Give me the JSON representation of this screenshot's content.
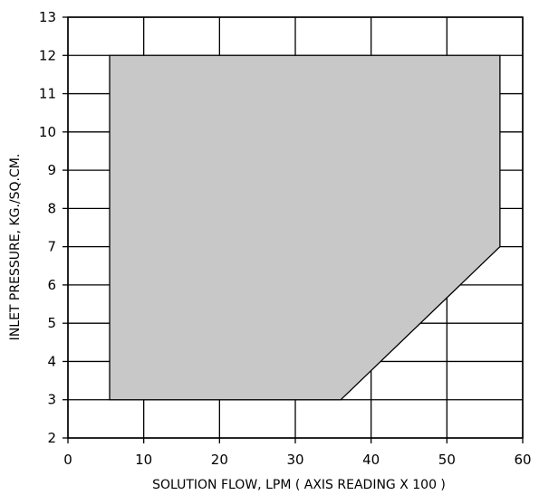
{
  "chart_data": {
    "type": "area",
    "title": "",
    "xlabel": "SOLUTION FLOW, LPM ( AXIS READING X 100 )",
    "ylabel": "INLET PRESSURE, KG./SQ.CM.",
    "xlim": [
      0,
      60
    ],
    "ylim": [
      2,
      13
    ],
    "xticks": [
      0,
      10,
      20,
      30,
      40,
      50,
      60
    ],
    "yticks": [
      2,
      3,
      4,
      5,
      6,
      7,
      8,
      9,
      10,
      11,
      12,
      13
    ],
    "grid": true,
    "legend": "none",
    "fill_color": "#c8c8c8",
    "series": [
      {
        "polygon": [
          {
            "x": 5.5,
            "y": 3
          },
          {
            "x": 36,
            "y": 3
          },
          {
            "x": 57,
            "y": 7
          },
          {
            "x": 57,
            "y": 12
          },
          {
            "x": 5.5,
            "y": 12
          }
        ]
      }
    ]
  }
}
